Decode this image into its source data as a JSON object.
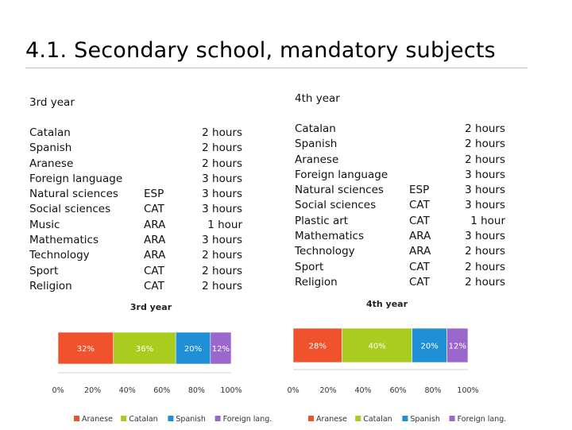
{
  "slide": {
    "title": "4.1. Secondary school, mandatory subjects"
  },
  "year3": {
    "heading": "3rd year",
    "subjects": [
      {
        "name": "Catalan",
        "lang": "",
        "hours": "2 hours"
      },
      {
        "name": "Spanish",
        "lang": "",
        "hours": "2 hours"
      },
      {
        "name": "Aranese",
        "lang": "",
        "hours": "2 hours"
      },
      {
        "name": "Foreign language",
        "lang": "",
        "hours": "3 hours"
      },
      {
        "name": "Natural sciences",
        "lang": "ESP",
        "hours": "3 hours"
      },
      {
        "name": "Social sciences",
        "lang": "CAT",
        "hours": "3 hours"
      },
      {
        "name": "Music",
        "lang": "ARA",
        "hours": "1 hour"
      },
      {
        "name": "Mathematics",
        "lang": "ARA",
        "hours": "3 hours"
      },
      {
        "name": "Technology",
        "lang": "ARA",
        "hours": "2 hours"
      },
      {
        "name": "Sport",
        "lang": "CAT",
        "hours": "2 hours"
      },
      {
        "name": "Religion",
        "lang": "CAT",
        "hours": "2 hours"
      }
    ]
  },
  "year4": {
    "heading": "4th year",
    "subjects": [
      {
        "name": "Catalan",
        "lang": "",
        "hours": "2 hours"
      },
      {
        "name": "Spanish",
        "lang": "",
        "hours": "2 hours"
      },
      {
        "name": "Aranese",
        "lang": "",
        "hours": "2 hours"
      },
      {
        "name": "Foreign language",
        "lang": "",
        "hours": "3 hours"
      },
      {
        "name": "Natural sciences",
        "lang": "ESP",
        "hours": "3 hours"
      },
      {
        "name": "Social sciences",
        "lang": "CAT",
        "hours": "3 hours"
      },
      {
        "name": "Plastic art",
        "lang": "CAT",
        "hours": "1 hour"
      },
      {
        "name": "Mathematics",
        "lang": "ARA",
        "hours": "3 hours"
      },
      {
        "name": "Technology",
        "lang": "ARA",
        "hours": "2 hours"
      },
      {
        "name": "Sport",
        "lang": "CAT",
        "hours": "2 hours"
      },
      {
        "name": "Religion",
        "lang": "CAT",
        "hours": "2 hours"
      }
    ]
  },
  "colors": {
    "Aranese": "#f0522e",
    "Catalan": "#a9cd1e",
    "Spanish": "#1f8fd6",
    "Foreign lang.": "#9b67cc"
  },
  "chart_data": [
    {
      "type": "bar",
      "stacked": true,
      "orientation": "horizontal",
      "title": "3rd year",
      "categories": [
        "3rd year"
      ],
      "series": [
        {
          "name": "Aranese",
          "values": [
            32
          ]
        },
        {
          "name": "Catalan",
          "values": [
            36
          ]
        },
        {
          "name": "Spanish",
          "values": [
            20
          ]
        },
        {
          "name": "Foreign lang.",
          "values": [
            12
          ]
        }
      ],
      "data_labels": [
        "32%",
        "36%",
        "20%",
        "12%"
      ],
      "xticks": [
        "0%",
        "20%",
        "40%",
        "60%",
        "80%",
        "100%"
      ],
      "xlim": [
        0,
        100
      ],
      "legend": "bottom"
    },
    {
      "type": "bar",
      "stacked": true,
      "orientation": "horizontal",
      "title": "4th year",
      "categories": [
        "4th year"
      ],
      "series": [
        {
          "name": "Aranese",
          "values": [
            28
          ]
        },
        {
          "name": "Catalan",
          "values": [
            40
          ]
        },
        {
          "name": "Spanish",
          "values": [
            20
          ]
        },
        {
          "name": "Foreign lang.",
          "values": [
            12
          ]
        }
      ],
      "data_labels": [
        "28%",
        "40%",
        "20%",
        "12%"
      ],
      "xticks": [
        "0%",
        "20%",
        "40%",
        "60%",
        "80%",
        "100%"
      ],
      "xlim": [
        0,
        100
      ],
      "legend": "bottom"
    }
  ]
}
